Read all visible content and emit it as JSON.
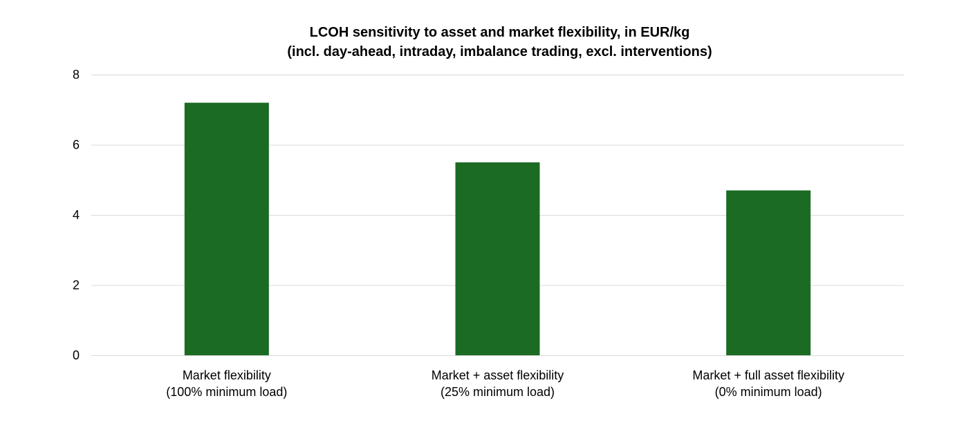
{
  "chart_data": {
    "type": "bar",
    "title": "LCOH sensitivity to asset and market flexibility, in EUR/kg",
    "subtitle": "(incl. day-ahead, intraday, imbalance trading, excl. interventions)",
    "categories": [
      [
        "Market flexibility",
        "(100% minimum load)"
      ],
      [
        "Market + asset flexibility",
        "(25% minimum load)"
      ],
      [
        "Market + full asset flexibility",
        "(0% minimum load)"
      ]
    ],
    "values": [
      7.2,
      5.5,
      4.7
    ],
    "xlabel": "",
    "ylabel": "",
    "ylim": [
      0,
      8
    ],
    "yticks": [
      0,
      2,
      4,
      6,
      8
    ],
    "grid": true,
    "legend": "none",
    "colors": {
      "bar": "#1b6b23",
      "grid": "#d9d9d9",
      "text": "#000000"
    }
  }
}
